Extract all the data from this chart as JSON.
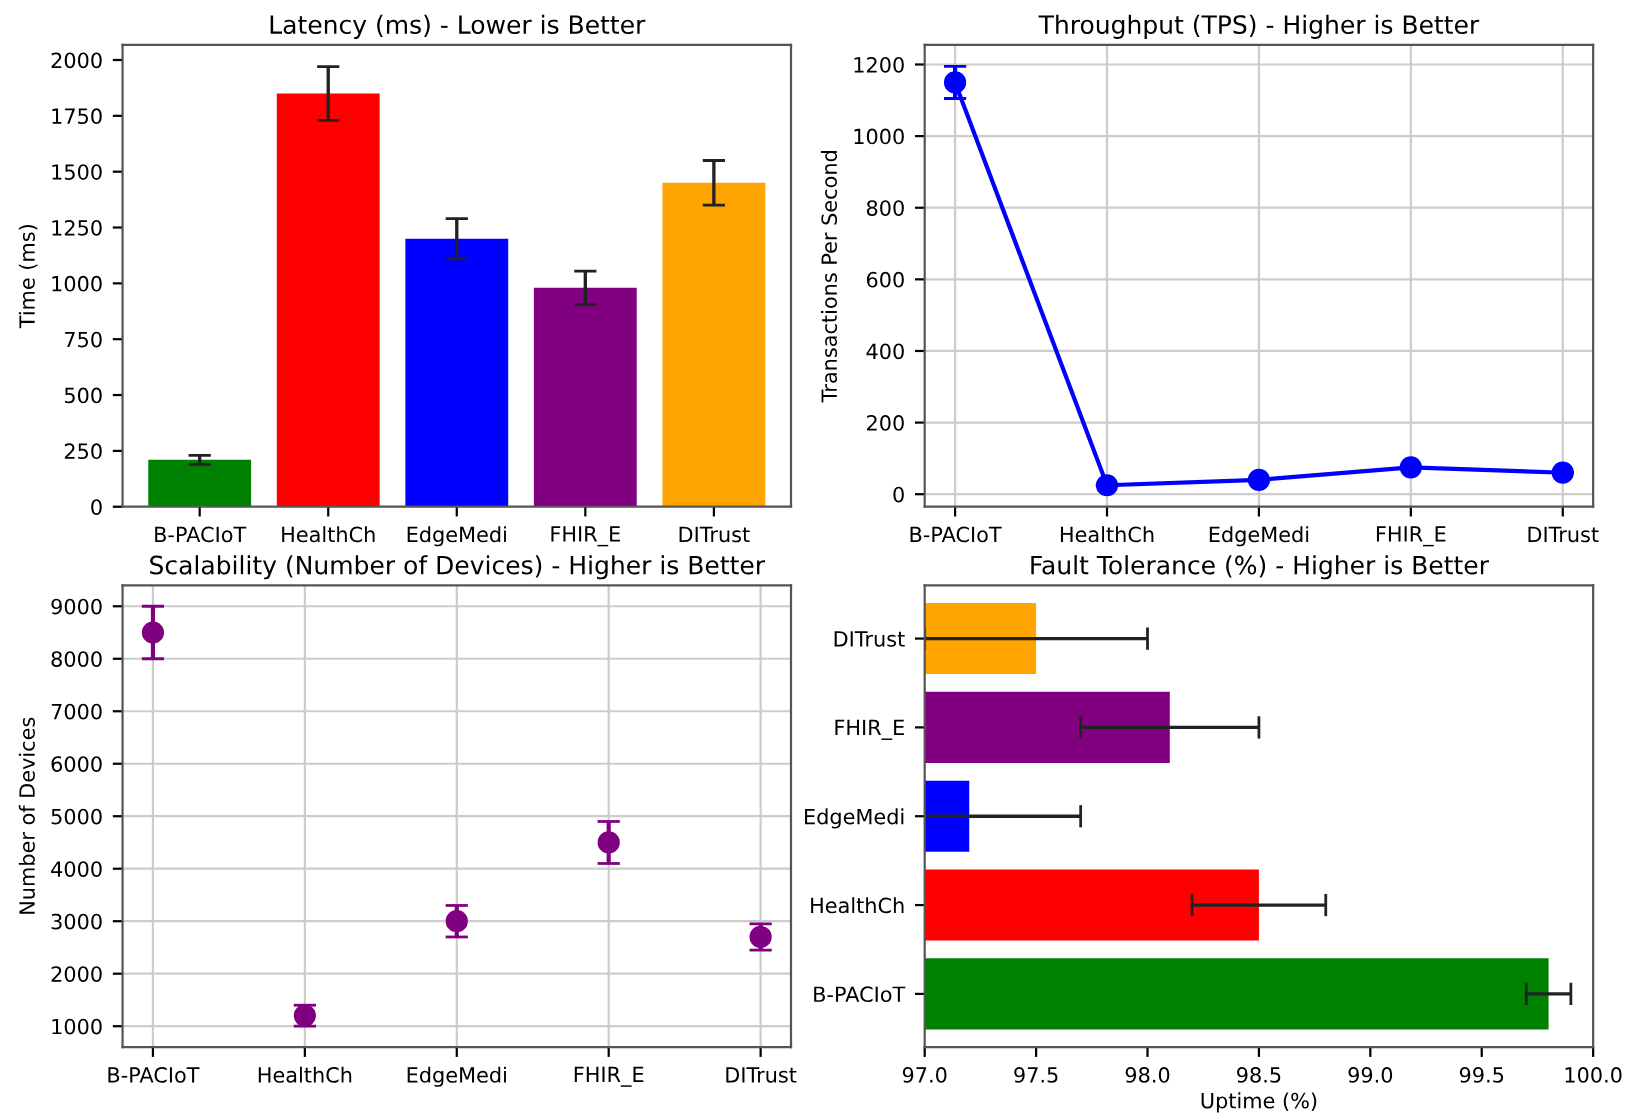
{
  "chart_data": [
    {
      "type": "bar",
      "title": "Latency (ms) - Lower is Better",
      "ylabel": "Time (ms)",
      "categories": [
        "B-PACIoT",
        "HealthCh",
        "EdgeMedi",
        "FHIR_E",
        "DITrust"
      ],
      "values": [
        210,
        1850,
        1200,
        980,
        1450
      ],
      "colors": [
        "#008000",
        "#ff0000",
        "#0000ff",
        "#800080",
        "#ffa500"
      ],
      "errors": [
        20,
        120,
        90,
        75,
        100
      ],
      "ylim": [
        0,
        2068
      ],
      "yticks": [
        0,
        250,
        500,
        750,
        1000,
        1250,
        1500,
        1750,
        2000
      ],
      "grid": false
    },
    {
      "type": "line",
      "title": "Throughput (TPS) - Higher is Better",
      "ylabel": "Transactions Per Second",
      "categories": [
        "B-PACIoT",
        "HealthCh",
        "EdgeMedi",
        "FHIR_E",
        "DITrust"
      ],
      "series": [
        {
          "color": "#0000ff",
          "values": [
            1150,
            25,
            40,
            75,
            60
          ],
          "errors": [
            45,
            null,
            null,
            null,
            null
          ]
        }
      ],
      "marker": "circle",
      "line_style": "solid",
      "ylim": [
        -35,
        1255
      ],
      "yticks": [
        0,
        200,
        400,
        600,
        800,
        1000,
        1200
      ],
      "grid": true
    },
    {
      "type": "scatter",
      "title": "Scalability (Number of Devices) - Higher is Better",
      "ylabel": "Number of Devices",
      "categories": [
        "B-PACIoT",
        "HealthCh",
        "EdgeMedi",
        "FHIR_E",
        "DITrust"
      ],
      "series": [
        {
          "color": "#800080",
          "values": [
            8500,
            1200,
            3000,
            4500,
            2700
          ],
          "errors": [
            500,
            200,
            300,
            400,
            250
          ]
        }
      ],
      "marker": "circle",
      "ylim": [
        600,
        9400
      ],
      "yticks": [
        1000,
        2000,
        3000,
        4000,
        5000,
        6000,
        7000,
        8000,
        9000
      ],
      "grid": true
    },
    {
      "type": "bar",
      "orientation": "horizontal",
      "title": "Fault Tolerance (%) - Higher is Better",
      "xlabel": "Uptime (%)",
      "categories": [
        "DITrust",
        "FHIR_E",
        "EdgeMedi",
        "HealthCh",
        "B-PACIoT"
      ],
      "values": [
        97.5,
        98.1,
        97.2,
        98.5,
        99.8
      ],
      "colors": [
        "#ffa500",
        "#800080",
        "#0000ff",
        "#ff0000",
        "#008000"
      ],
      "errors": [
        0.5,
        0.4,
        [
          97.0,
          97.7
        ],
        0.3,
        0.1
      ],
      "xlim": [
        97.0,
        100.0
      ],
      "xticks": [
        {
          "value": 97.0,
          "label": "97.0"
        },
        {
          "value": 97.5,
          "label": "97.5"
        },
        {
          "value": 98.0,
          "label": "98.0"
        },
        {
          "value": 98.5,
          "label": "98.5"
        },
        {
          "value": 99.0,
          "label": "99.0"
        },
        {
          "value": 99.5,
          "label": "99.5"
        },
        {
          "value": 100.0,
          "label": "100.0"
        }
      ],
      "grid": false
    }
  ]
}
